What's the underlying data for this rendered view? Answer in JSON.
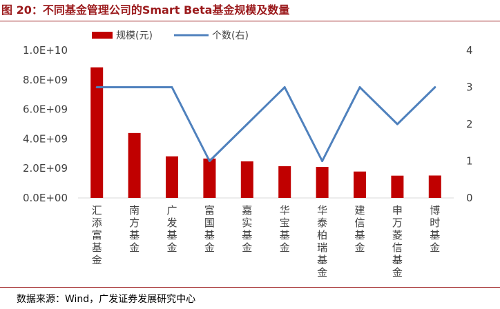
{
  "figure": {
    "title": "图 20：不同基金管理公司的Smart Beta基金规模及数量",
    "source": "数据来源：Wind，广发证券发展研究中心"
  },
  "chart_data": {
    "type": "bar",
    "categories": [
      "汇添富基金",
      "南方基金",
      "广发基金",
      "富国基金",
      "嘉实基金",
      "华宝基金",
      "华泰柏瑞基金",
      "建信基金",
      "申万菱信基金",
      "博时基金"
    ],
    "series": [
      {
        "name": "规模(元)",
        "type": "bar",
        "axis": "left",
        "color": "#c00000",
        "values": [
          8850000000,
          4400000000,
          2820000000,
          2670000000,
          2480000000,
          2150000000,
          2100000000,
          1790000000,
          1510000000,
          1520000000
        ]
      },
      {
        "name": "个数(右)",
        "type": "line",
        "axis": "right",
        "color": "#4f81bd",
        "values": [
          3,
          3,
          3,
          1,
          2,
          3,
          1,
          3,
          2,
          3
        ]
      }
    ],
    "y_left": {
      "ticks": [
        "0.0E+00",
        "2.0E+09",
        "4.0E+09",
        "6.0E+09",
        "8.0E+09",
        "1.0E+10"
      ],
      "range": [
        0,
        10000000000
      ]
    },
    "y_right": {
      "ticks": [
        "0",
        "1",
        "2",
        "3",
        "4"
      ],
      "range": [
        0,
        4
      ]
    },
    "legend_position": "top-center",
    "grid": false
  }
}
